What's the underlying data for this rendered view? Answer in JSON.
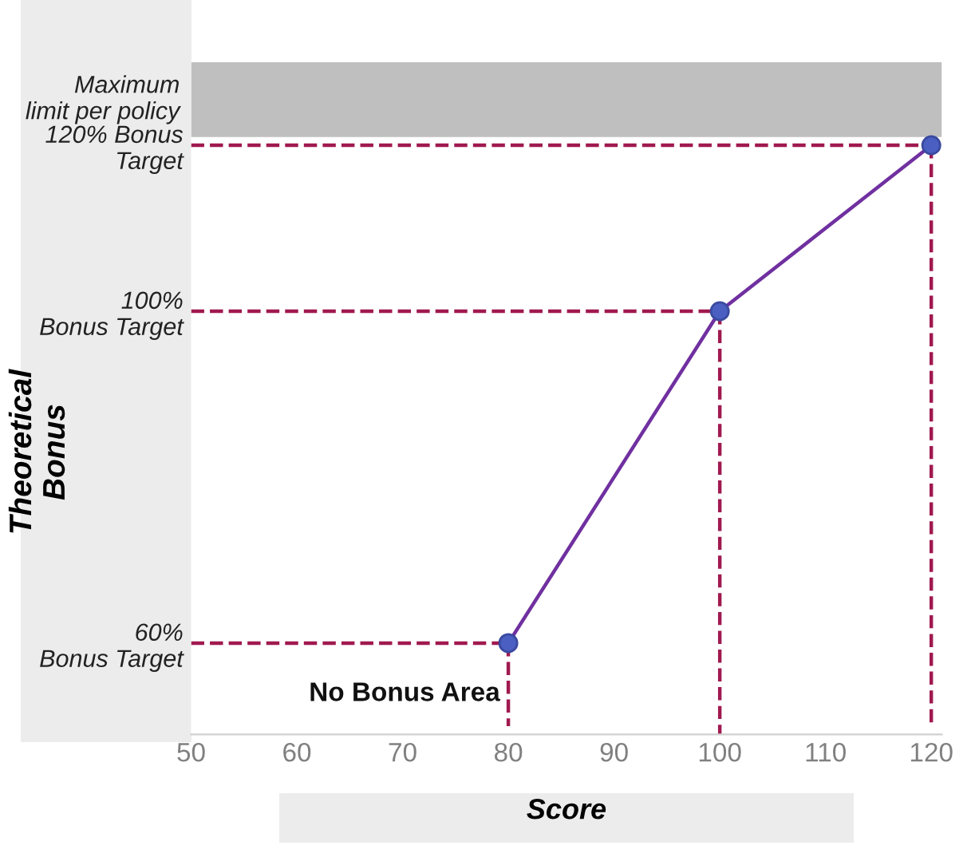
{
  "chart_data": {
    "type": "line",
    "xlabel": "Score",
    "ylabel": "Theoretical\nBonus",
    "xlim": [
      50,
      121
    ],
    "xticks": [
      50,
      60,
      70,
      80,
      90,
      100,
      110,
      120
    ],
    "ylim": [
      49,
      130
    ],
    "yticks": [
      {
        "value": 60,
        "label": "60%\nBonus Target"
      },
      {
        "value": 100,
        "label": "100%\nBonus Target"
      },
      {
        "value": 120,
        "label": "120% Bonus\nTarget"
      }
    ],
    "grid": false,
    "legend": false,
    "series": [
      {
        "x": [
          80,
          100,
          120
        ],
        "values": [
          60,
          100,
          120
        ],
        "color": "#7030a0",
        "marker": "circle",
        "line_style": "solid"
      },
      {
        "x": [
          50,
          80
        ],
        "values": [
          60,
          60
        ],
        "color": "#a0194f",
        "marker": "none",
        "line_style": "dashed"
      },
      {
        "x": [
          80,
          80
        ],
        "values": [
          60,
          50
        ],
        "color": "#a0194f",
        "marker": "none",
        "line_style": "dashed"
      },
      {
        "x": [
          50,
          100
        ],
        "values": [
          100,
          100
        ],
        "color": "#a0194f",
        "marker": "none",
        "line_style": "dashed"
      },
      {
        "x": [
          100,
          100
        ],
        "values": [
          100,
          49
        ],
        "color": "#a0194f",
        "marker": "none",
        "line_style": "dashed"
      },
      {
        "x": [
          50,
          120
        ],
        "values": [
          120,
          120
        ],
        "color": "#a0194f",
        "marker": "none",
        "line_style": "dashed"
      },
      {
        "x": [
          120,
          120
        ],
        "values": [
          120,
          50
        ],
        "color": "#a0194f",
        "marker": "none",
        "line_style": "dashed"
      }
    ],
    "bands": [
      {
        "axis": "y",
        "from": 121,
        "to": 130,
        "label": "Maximum\nlimit per policy",
        "color": "#bfbfbf"
      }
    ],
    "annotations": [
      "No Bonus Area"
    ]
  }
}
